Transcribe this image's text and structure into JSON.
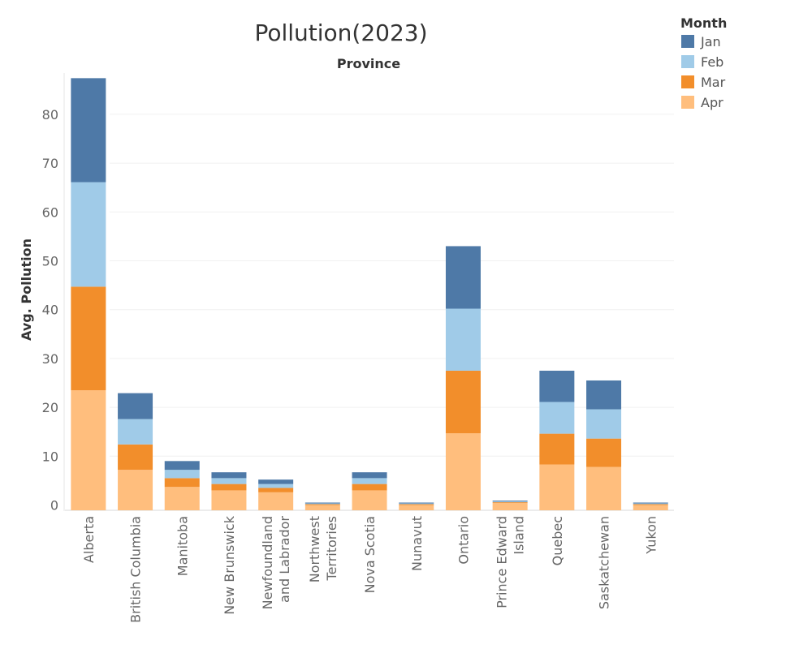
{
  "chart_data": {
    "type": "bar",
    "stacked": true,
    "title": "Pollution(2023)",
    "header": "Province",
    "xlabel": "",
    "ylabel": "Avg. Pollution",
    "ylim": [
      -2,
      88
    ],
    "yticks": [
      0,
      10,
      20,
      30,
      40,
      50,
      60,
      70,
      80
    ],
    "grid": true,
    "legend": {
      "title": "Month",
      "position": "top-right"
    },
    "categories": [
      [
        "Alberta"
      ],
      [
        "British Columbia"
      ],
      [
        "Manitoba"
      ],
      [
        "New Brunswick"
      ],
      [
        "Newfoundland",
        "and Labrador"
      ],
      [
        "Northwest",
        "Territories"
      ],
      [
        "Nova Scotia"
      ],
      [
        "Nunavut"
      ],
      [
        "Ontario"
      ],
      [
        "Prince Edward",
        "Island"
      ],
      [
        "Quebec"
      ],
      [
        "Saskatchewan"
      ],
      [
        "Yukon"
      ]
    ],
    "series": [
      {
        "name": "Apr",
        "color": "#FFBE7D",
        "values": [
          23.5,
          7.2,
          3.7,
          3.0,
          2.6,
          0.0,
          3.0,
          0.0,
          14.7,
          0.4,
          8.3,
          7.8,
          0.0
        ]
      },
      {
        "name": "Mar",
        "color": "#F28E2B",
        "values": [
          21.2,
          5.2,
          1.8,
          1.3,
          0.9,
          0.05,
          1.3,
          0.05,
          12.8,
          0.1,
          6.3,
          5.8,
          0.05
        ]
      },
      {
        "name": "Feb",
        "color": "#A0CBE8",
        "values": [
          21.4,
          5.2,
          1.7,
          1.2,
          0.8,
          0.05,
          1.2,
          0.05,
          12.7,
          0.1,
          6.5,
          6.0,
          0.05
        ]
      },
      {
        "name": "Jan",
        "color": "#4E79A7",
        "values": [
          21.3,
          5.3,
          1.8,
          1.2,
          0.9,
          0.1,
          1.2,
          0.1,
          12.8,
          0.2,
          6.4,
          5.9,
          0.1
        ]
      }
    ]
  }
}
